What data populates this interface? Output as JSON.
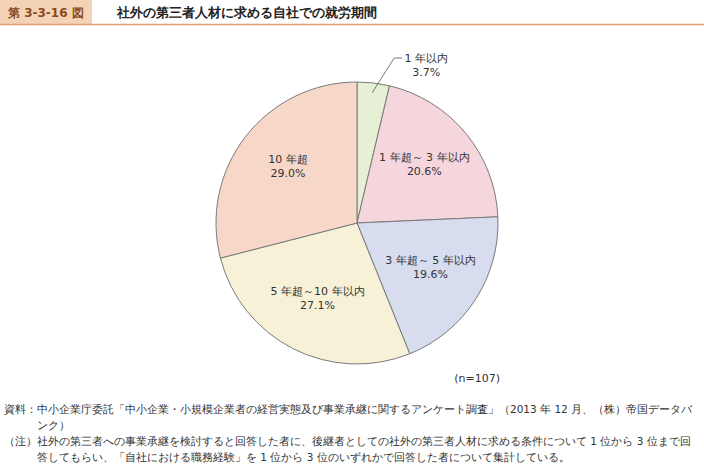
{
  "chart_data": {
    "type": "pie",
    "figure_label": "第 3-3-16 図",
    "title": "社外の第三者人材に求める自社での就労期間",
    "categories": [
      "1 年以内",
      "1 年超～ 3 年以内",
      "3 年超～ 5 年以内",
      "5 年超～10 年以内",
      "10 年超"
    ],
    "values": [
      3.7,
      20.6,
      19.6,
      27.1,
      29.0
    ],
    "value_labels": [
      "3.7%",
      "20.6%",
      "19.6%",
      "27.1%",
      "29.0%"
    ],
    "colors": [
      "#e5f0d4",
      "#f6d6dd",
      "#d8dcef",
      "#f7f1d7",
      "#f7d8c8"
    ],
    "data_labels": true,
    "sample_size_label": "(n=107)",
    "source": [
      "資料：中小企業庁委託「中小企業・小規模企業者の経営実態及び事業承継に関するアンケート調査」（2013 年 12 月、（株）帝国データバ",
      "ンク）"
    ],
    "note": [
      "（注）社外の第三者への事業承継を検討すると回答した者に、後継者としての社外の第三者人材に求める条件について 1 位から 3 位まで回",
      "答してもらい、「自社における職務経験」を 1 位から 3 位のいずれかで回答した者について集計している。"
    ]
  }
}
